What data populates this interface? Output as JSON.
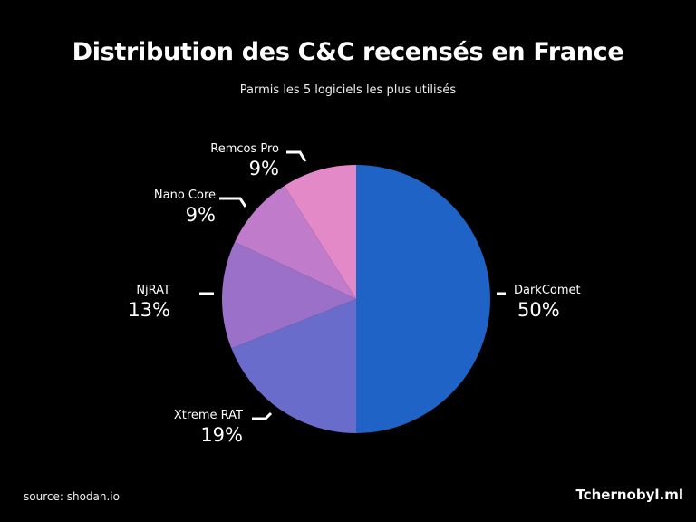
{
  "title": "Distribution des C&C recensés en France",
  "subtitle": "Parmis les 5 logiciels les plus utilisés",
  "source": "source: shodan.io",
  "brand": "Tchernobyl.ml",
  "chart_data": {
    "type": "pie",
    "title": "Distribution des C&C recensés en France",
    "subtitle": "Parmis les 5 logiciels les plus utilisés",
    "start": "12 o'clock, clockwise",
    "slices": [
      {
        "label": "DarkComet",
        "value": 50,
        "display": "50%",
        "color": "#1f63c6"
      },
      {
        "label": "Xtreme RAT",
        "value": 19,
        "display": "19%",
        "color": "#6a6ccb"
      },
      {
        "label": "NjRAT",
        "value": 13,
        "display": "13%",
        "color": "#9a70c9"
      },
      {
        "label": "Nano Core",
        "value": 9,
        "display": "9%",
        "color": "#c07bcb"
      },
      {
        "label": "Remcos Pro",
        "value": 9,
        "display": "9%",
        "color": "#e489c7"
      }
    ]
  }
}
